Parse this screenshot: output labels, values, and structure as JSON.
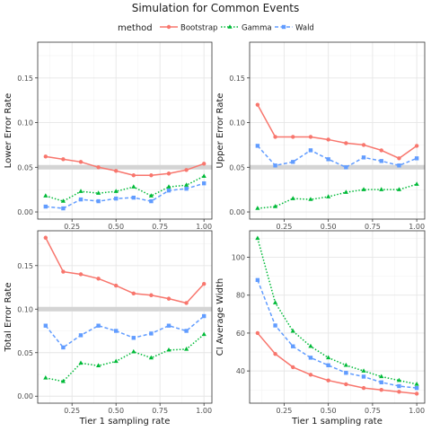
{
  "title": "Simulation for Common Events",
  "legend": {
    "title": "method",
    "position": "top",
    "entries": [
      {
        "name": "Bootstrap",
        "color": "#F8766D",
        "shape": "circle",
        "line": "solid"
      },
      {
        "name": "Gamma",
        "color": "#00BA38",
        "shape": "triangle",
        "line": "dotted"
      },
      {
        "name": "Wald",
        "color": "#619CFF",
        "shape": "square",
        "line": "dashed"
      }
    ]
  },
  "chart_data": [
    {
      "type": "line",
      "ylabel": "Lower Error Rate",
      "xlabel": "",
      "x": [
        0.1,
        0.2,
        0.3,
        0.4,
        0.5,
        0.6,
        0.7,
        0.8,
        0.9,
        1.0
      ],
      "xticks": [
        "0.25",
        "0.50",
        "0.75",
        "1.00"
      ],
      "yticks": [
        "0.00",
        "0.05",
        "0.10",
        "0.15"
      ],
      "ylim": [
        -0.008,
        0.19
      ],
      "xlim": [
        0.055,
        1.045
      ],
      "reference_line": 0.05,
      "series": [
        {
          "name": "Bootstrap",
          "values": [
            0.062,
            0.059,
            0.056,
            0.05,
            0.046,
            0.041,
            0.041,
            0.043,
            0.047,
            0.054
          ]
        },
        {
          "name": "Gamma",
          "values": [
            0.018,
            0.012,
            0.023,
            0.021,
            0.023,
            0.028,
            0.018,
            0.028,
            0.03,
            0.04
          ]
        },
        {
          "name": "Wald",
          "values": [
            0.006,
            0.004,
            0.014,
            0.012,
            0.015,
            0.016,
            0.012,
            0.024,
            0.026,
            0.032
          ]
        }
      ]
    },
    {
      "type": "line",
      "ylabel": "Upper Error Rate",
      "xlabel": "",
      "x": [
        0.1,
        0.2,
        0.3,
        0.4,
        0.5,
        0.6,
        0.7,
        0.8,
        0.9,
        1.0
      ],
      "xticks": [
        "0.25",
        "0.50",
        "0.75",
        "1.00"
      ],
      "yticks": [
        "0.00",
        "0.05",
        "0.10",
        "0.15"
      ],
      "ylim": [
        -0.008,
        0.19
      ],
      "xlim": [
        0.055,
        1.045
      ],
      "reference_line": 0.05,
      "series": [
        {
          "name": "Bootstrap",
          "values": [
            0.12,
            0.084,
            0.084,
            0.084,
            0.081,
            0.077,
            0.075,
            0.069,
            0.06,
            0.074
          ]
        },
        {
          "name": "Gamma",
          "values": [
            0.004,
            0.006,
            0.015,
            0.014,
            0.017,
            0.022,
            0.025,
            0.025,
            0.025,
            0.031
          ]
        },
        {
          "name": "Wald",
          "values": [
            0.074,
            0.052,
            0.056,
            0.069,
            0.059,
            0.05,
            0.061,
            0.057,
            0.052,
            0.06
          ]
        }
      ]
    },
    {
      "type": "line",
      "ylabel": "Total Error Rate",
      "xlabel": "Tier 1 sampling rate",
      "x": [
        0.1,
        0.2,
        0.3,
        0.4,
        0.5,
        0.6,
        0.7,
        0.8,
        0.9,
        1.0
      ],
      "xticks": [
        "0.25",
        "0.50",
        "0.75",
        "1.00"
      ],
      "yticks": [
        "0.00",
        "0.05",
        "0.10",
        "0.15"
      ],
      "ylim": [
        -0.008,
        0.19
      ],
      "xlim": [
        0.055,
        1.045
      ],
      "reference_line": 0.1,
      "series": [
        {
          "name": "Bootstrap",
          "values": [
            0.182,
            0.143,
            0.14,
            0.135,
            0.127,
            0.118,
            0.116,
            0.112,
            0.107,
            0.129
          ]
        },
        {
          "name": "Gamma",
          "values": [
            0.021,
            0.017,
            0.038,
            0.035,
            0.04,
            0.051,
            0.044,
            0.053,
            0.054,
            0.071
          ]
        },
        {
          "name": "Wald",
          "values": [
            0.081,
            0.056,
            0.07,
            0.081,
            0.075,
            0.067,
            0.072,
            0.081,
            0.075,
            0.092
          ]
        }
      ]
    },
    {
      "type": "line",
      "ylabel": "CI Average Width",
      "xlabel": "Tier 1 sampling rate",
      "x": [
        0.1,
        0.2,
        0.3,
        0.4,
        0.5,
        0.6,
        0.7,
        0.8,
        0.9,
        1.0
      ],
      "xticks": [
        "0.25",
        "0.50",
        "0.75",
        "1.00"
      ],
      "yticks": [
        "40",
        "60",
        "80",
        "100"
      ],
      "ylim": [
        23,
        114
      ],
      "xlim": [
        0.055,
        1.045
      ],
      "reference_line": null,
      "series": [
        {
          "name": "Bootstrap",
          "values": [
            60,
            49,
            42,
            38,
            35,
            33,
            31,
            30,
            29,
            28
          ]
        },
        {
          "name": "Gamma",
          "values": [
            110,
            76,
            61,
            53,
            47,
            43,
            40,
            37,
            35,
            33
          ]
        },
        {
          "name": "Wald",
          "values": [
            88,
            64,
            53,
            47,
            43,
            39,
            37,
            34,
            32,
            31
          ]
        }
      ]
    }
  ]
}
